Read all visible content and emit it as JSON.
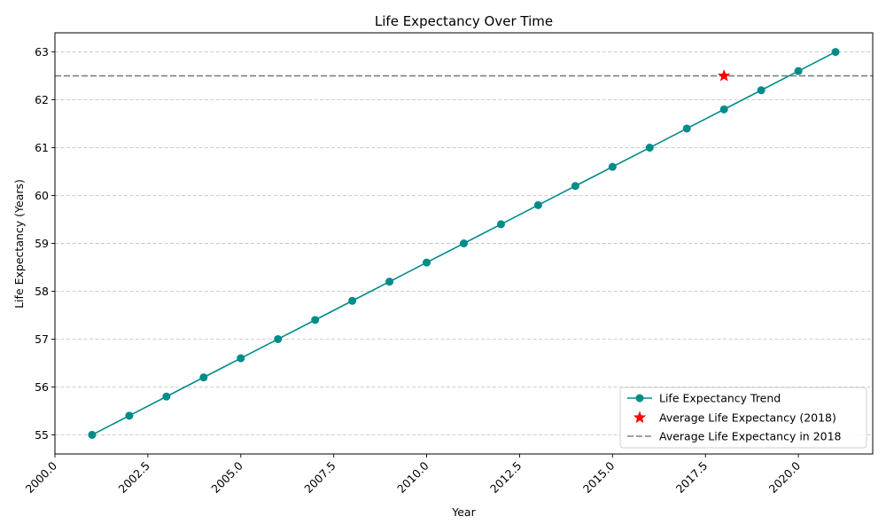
{
  "chart_data": {
    "type": "line",
    "title": "Life Expectancy Over Time",
    "xlabel": "Year",
    "ylabel": "Life Expectancy (Years)",
    "xlim": [
      2000,
      2022.0
    ],
    "ylim": [
      54.6,
      63.4
    ],
    "x_ticks": [
      2000,
      2002.5,
      2005,
      2007.5,
      2010,
      2012.5,
      2015,
      2017.5,
      2020
    ],
    "x_tick_labels": [
      "2000.0",
      "2002.5",
      "2005.0",
      "2007.5",
      "2010.0",
      "2012.5",
      "2015.0",
      "2017.5",
      "2020.0"
    ],
    "y_ticks": [
      55,
      56,
      57,
      58,
      59,
      60,
      61,
      62,
      63
    ],
    "y_tick_labels": [
      "55",
      "56",
      "57",
      "58",
      "59",
      "60",
      "61",
      "62",
      "63"
    ],
    "grid": "y-dashed",
    "legend_position": "lower-right",
    "series": [
      {
        "name": "Life Expectancy Trend",
        "style": "line-with-circle-markers",
        "color": "#008b8b",
        "x": [
          2001,
          2002,
          2003,
          2004,
          2005,
          2006,
          2007,
          2008,
          2009,
          2010,
          2011,
          2012,
          2013,
          2014,
          2015,
          2016,
          2017,
          2018,
          2019,
          2020,
          2021
        ],
        "y": [
          55.0,
          55.4,
          55.8,
          56.2,
          56.6,
          57.0,
          57.4,
          57.8,
          58.2,
          58.6,
          59.0,
          59.4,
          59.8,
          60.2,
          60.6,
          61.0,
          61.4,
          61.8,
          62.2,
          62.6,
          63.0
        ]
      },
      {
        "name": "Average Life Expectancy (2018)",
        "style": "star-marker",
        "color": "#ff0000",
        "x": [
          2018
        ],
        "y": [
          62.5
        ]
      },
      {
        "name": "Average Life Expectancy in 2018",
        "style": "horizontal-dashed-line",
        "color": "#808080",
        "y": 62.5
      }
    ]
  }
}
